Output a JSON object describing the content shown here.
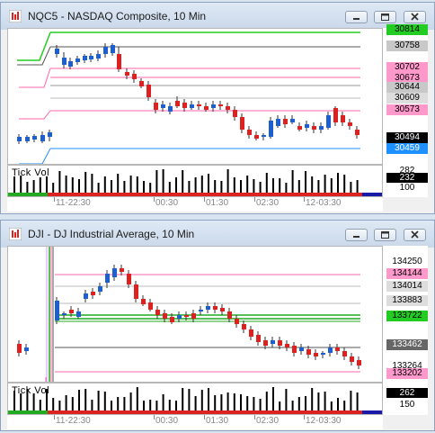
{
  "windows": [
    {
      "title": "NQC5 - NASDAQ Composite, 10 Min",
      "price_labels": [
        {
          "text": "30814",
          "bg": "#22cc22",
          "fg": "#000000"
        },
        {
          "text": "30758",
          "bg": "#c8c8c8",
          "fg": "#000000"
        },
        {
          "text": "30702",
          "bg": "#ff99cc",
          "fg": "#000000"
        },
        {
          "text": "30673",
          "bg": "#ff99cc",
          "fg": "#000000"
        },
        {
          "text": "30644",
          "bg": "#c8c8c8",
          "fg": "#000000"
        },
        {
          "text": "30609",
          "bg": "#dddddd",
          "fg": "#000000"
        },
        {
          "text": "30573",
          "bg": "#ff99cc",
          "fg": "#000000"
        },
        {
          "text": "30494",
          "bg": "#000000",
          "fg": "#ffffff"
        },
        {
          "text": "30459",
          "bg": "#1e90ff",
          "fg": "#ffffff"
        }
      ],
      "volume_panel": {
        "title": "Tick Vol",
        "labels": [
          "282",
          "232",
          "100"
        ]
      },
      "time_axis": [
        "11-22:30",
        "00:30",
        "01:30",
        "02:30",
        "12-03:30"
      ]
    },
    {
      "title": "DJI - DJ Industrial Average, 10 Min",
      "price_labels": [
        {
          "text": "134250",
          "bg": "#ffffff",
          "fg": "#000000"
        },
        {
          "text": "134144",
          "bg": "#ff99cc",
          "fg": "#000000"
        },
        {
          "text": "134014",
          "bg": "#dddddd",
          "fg": "#000000"
        },
        {
          "text": "133883",
          "bg": "#dddddd",
          "fg": "#000000"
        },
        {
          "text": "133722",
          "bg": "#22cc22",
          "fg": "#000000"
        },
        {
          "text": "133462",
          "bg": "#666666",
          "fg": "#ffffff"
        },
        {
          "text": "133264",
          "bg": "#ffffff",
          "fg": "#000000"
        },
        {
          "text": "133202",
          "bg": "#ff99cc",
          "fg": "#000000"
        }
      ],
      "volume_panel": {
        "title": "Tick Vol",
        "labels": [
          "262",
          "150"
        ]
      },
      "time_axis": [
        "11-22:30",
        "00:30",
        "01:30",
        "02:30",
        "12-03:30"
      ]
    }
  ],
  "icons": [
    "chart-app-icon",
    "minimize-icon",
    "restore-icon",
    "close-icon"
  ]
}
